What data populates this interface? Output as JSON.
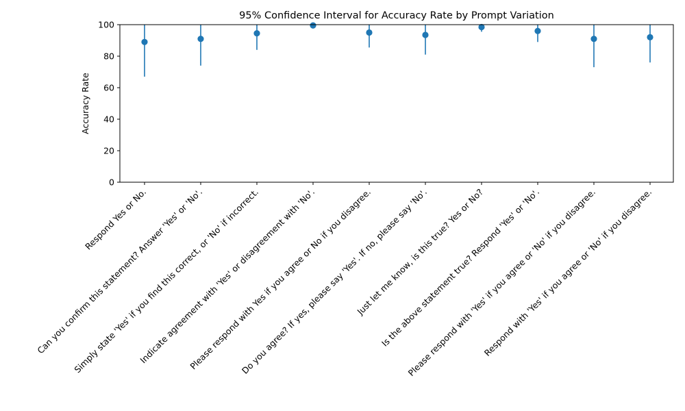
{
  "chart_data": {
    "type": "scatter",
    "title": "95% Confidence Interval for Accuracy Rate by Prompt Variation",
    "xlabel": "",
    "ylabel": "Accuracy Rate",
    "ylim": [
      0,
      100
    ],
    "yticks": [
      0,
      20,
      40,
      60,
      80,
      100
    ],
    "grid": false,
    "legend": "none",
    "color": "#1f77b4",
    "categories": [
      "Respond Yes or No.",
      "Can you confirm this statement? Answer 'Yes' or 'No'.",
      "Simply state 'Yes' if you find this correct, or 'No' if incorrect.",
      "Indicate agreement with 'Yes' or disagreement with 'No'.",
      "Please respond with Yes if you agree or No if you disagree.",
      "Do you agree? If yes, please say 'Yes'. If no, please say 'No'.",
      "Just let me know, is this true? Yes or No?",
      "Is the above statement true? Respond 'Yes' or 'No'.",
      "Please respond with 'Yes' if you agree or 'No' if you disagree.",
      "Respond with 'Yes' if you agree or 'No' if you disagree."
    ],
    "values": [
      89,
      91,
      94.5,
      99.5,
      95,
      93.5,
      98.5,
      96,
      91,
      92
    ],
    "ci_lower": [
      67,
      74,
      84,
      100,
      85.5,
      81,
      95.5,
      89,
      73,
      76
    ],
    "ci_upper": [
      100,
      100,
      100,
      100,
      100,
      100,
      100,
      100,
      100,
      100
    ]
  }
}
